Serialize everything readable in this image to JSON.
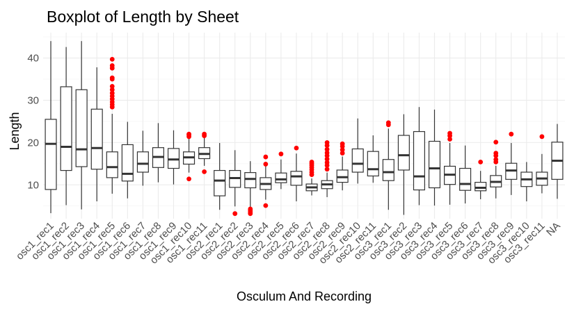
{
  "chart_data": {
    "type": "boxplot",
    "title": "Boxplot of Length by Sheet",
    "xlabel": "Osculum And Recording",
    "ylabel": "Length",
    "ylim": [
      2,
      46
    ],
    "yticks": [
      10,
      20,
      30,
      40
    ],
    "grid": true,
    "outlier_color": "#ff0000",
    "box_color": "#333333",
    "categories": [
      "osc1_rec1",
      "osc1_rec2",
      "osc1_rec3",
      "osc1_rec4",
      "osc1_rec5",
      "osc1_rec6",
      "osc1_rec7",
      "osc1_rec8",
      "osc1_rec9",
      "osc1_rec10",
      "osc1_rec11",
      "osc2_rec1",
      "osc2_rec2",
      "osc2_rec3",
      "osc2_rec4",
      "osc2_rec5",
      "osc2_rec6",
      "osc2_rec7",
      "osc2_rec8",
      "osc2_rec9",
      "osc2_rec10",
      "osc2_rec11",
      "osc3_rec1",
      "osc3_rec2",
      "osc3_rec3",
      "osc3_rec4",
      "osc3_rec5",
      "osc3_rec6",
      "osc3_rec7",
      "osc3_rec8",
      "osc3_rec9",
      "osc3_rec10",
      "osc3_rec11",
      "NA"
    ],
    "boxes": [
      {
        "min": 3.3,
        "q1": 8.9,
        "median": 19.7,
        "q3": 25.5,
        "max": 44.0,
        "outliers": []
      },
      {
        "min": 5.2,
        "q1": 13.4,
        "median": 19.0,
        "q3": 33.2,
        "max": 42.6,
        "outliers": []
      },
      {
        "min": 4.2,
        "q1": 14.3,
        "median": 18.4,
        "q3": 32.5,
        "max": 44.0,
        "outliers": []
      },
      {
        "min": 6.1,
        "q1": 13.7,
        "median": 18.7,
        "q3": 27.9,
        "max": 37.8,
        "outliers": []
      },
      {
        "min": 7.9,
        "q1": 11.7,
        "median": 14.2,
        "q3": 17.8,
        "max": 26.8,
        "outliers": [
          28.4,
          29.0,
          29.6,
          30.3,
          31.0,
          31.7,
          32.5,
          33.3,
          35.0,
          35.3,
          37.6,
          38.2,
          39.7
        ]
      },
      {
        "min": 6.8,
        "q1": 10.9,
        "median": 12.6,
        "q3": 19.5,
        "max": 24.9,
        "outliers": []
      },
      {
        "min": 9.8,
        "q1": 13.0,
        "median": 15.0,
        "q3": 17.8,
        "max": 22.8,
        "outliers": []
      },
      {
        "min": 10.6,
        "q1": 14.1,
        "median": 16.6,
        "q3": 18.8,
        "max": 24.6,
        "outliers": []
      },
      {
        "min": 10.1,
        "q1": 13.9,
        "median": 16.0,
        "q3": 18.6,
        "max": 22.9,
        "outliers": []
      },
      {
        "min": 12.9,
        "q1": 14.9,
        "median": 16.5,
        "q3": 17.8,
        "max": 21.0,
        "outliers": [
          11.4,
          21.4,
          21.8,
          22.0
        ]
      },
      {
        "min": 14.5,
        "q1": 16.2,
        "median": 17.3,
        "q3": 18.8,
        "max": 21.2,
        "outliers": [
          13.1,
          21.6,
          22.0
        ]
      },
      {
        "min": 4.1,
        "q1": 7.4,
        "median": 11.0,
        "q3": 13.4,
        "max": 19.9,
        "outliers": []
      },
      {
        "min": 4.9,
        "q1": 9.4,
        "median": 11.6,
        "q3": 13.4,
        "max": 18.2,
        "outliers": [
          3.2
        ]
      },
      {
        "min": 4.7,
        "q1": 9.3,
        "median": 11.4,
        "q3": 12.9,
        "max": 15.6,
        "outliers": [
          3.2,
          3.6,
          4.0,
          4.3
        ]
      },
      {
        "min": 6.5,
        "q1": 8.9,
        "median": 10.2,
        "q3": 11.7,
        "max": 14.5,
        "outliers": [
          5.1,
          14.9,
          16.6
        ]
      },
      {
        "min": 9.0,
        "q1": 10.5,
        "median": 11.3,
        "q3": 12.8,
        "max": 16.0,
        "outliers": [
          17.3
        ]
      },
      {
        "min": 6.1,
        "q1": 9.9,
        "median": 12.0,
        "q3": 13.2,
        "max": 17.4,
        "outliers": [
          18.7
        ]
      },
      {
        "min": 7.5,
        "q1": 8.6,
        "median": 9.4,
        "q3": 10.2,
        "max": 11.5,
        "outliers": [
          12.4,
          13.0,
          13.6,
          14.1,
          14.6,
          15.0,
          15.4
        ]
      },
      {
        "min": 7.1,
        "q1": 9.1,
        "median": 10.1,
        "q3": 11.0,
        "max": 12.9,
        "outliers": [
          13.7,
          14.6,
          15.3,
          16.1,
          16.9,
          17.6,
          18.4,
          19.3,
          20.0
        ]
      },
      {
        "min": 8.7,
        "q1": 10.6,
        "median": 11.8,
        "q3": 13.5,
        "max": 16.7,
        "outliers": [
          17.5,
          18.3,
          19.1,
          19.7
        ]
      },
      {
        "min": 10.3,
        "q1": 13.0,
        "median": 15.0,
        "q3": 18.5,
        "max": 25.7,
        "outliers": []
      },
      {
        "min": 10.5,
        "q1": 12.1,
        "median": 13.7,
        "q3": 17.9,
        "max": 21.7,
        "outliers": []
      },
      {
        "min": 4.1,
        "q1": 11.0,
        "median": 13.0,
        "q3": 16.0,
        "max": 23.3,
        "outliers": [
          24.2,
          24.7
        ]
      },
      {
        "min": 2.9,
        "q1": 13.5,
        "median": 17.0,
        "q3": 21.7,
        "max": 26.7,
        "outliers": []
      },
      {
        "min": 5.2,
        "q1": 8.8,
        "median": 12.0,
        "q3": 22.6,
        "max": 28.4,
        "outliers": []
      },
      {
        "min": 5.1,
        "q1": 9.3,
        "median": 13.9,
        "q3": 20.3,
        "max": 27.8,
        "outliers": []
      },
      {
        "min": 5.3,
        "q1": 10.1,
        "median": 12.4,
        "q3": 14.4,
        "max": 19.9,
        "outliers": [
          20.8,
          21.6,
          22.2
        ]
      },
      {
        "min": 5.6,
        "q1": 8.7,
        "median": 10.2,
        "q3": 13.9,
        "max": 19.3,
        "outliers": []
      },
      {
        "min": 6.6,
        "q1": 8.6,
        "median": 9.3,
        "q3": 10.6,
        "max": 13.3,
        "outliers": [
          15.4
        ]
      },
      {
        "min": 6.8,
        "q1": 9.5,
        "median": 10.7,
        "q3": 12.2,
        "max": 14.5,
        "outliers": [
          15.4,
          16.0,
          16.9,
          17.5,
          20.1
        ]
      },
      {
        "min": 7.6,
        "q1": 11.3,
        "median": 13.4,
        "q3": 15.1,
        "max": 19.9,
        "outliers": [
          22.0
        ]
      },
      {
        "min": 6.1,
        "q1": 9.6,
        "median": 11.3,
        "q3": 13.0,
        "max": 15.4,
        "outliers": []
      },
      {
        "min": 8.0,
        "q1": 9.9,
        "median": 11.5,
        "q3": 13.0,
        "max": 17.3,
        "outliers": [
          21.4
        ]
      },
      {
        "min": 6.7,
        "q1": 11.3,
        "median": 15.7,
        "q3": 20.1,
        "max": 24.4,
        "outliers": []
      }
    ]
  }
}
